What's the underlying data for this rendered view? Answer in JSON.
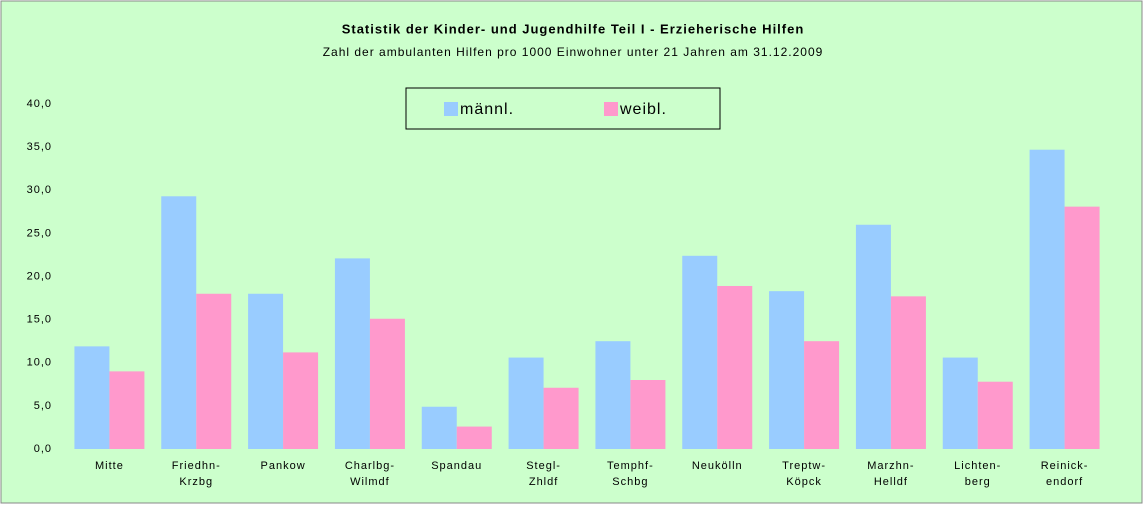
{
  "chart_data": {
    "type": "bar",
    "title": "Statistik der Kinder- und Jugendhilfe Teil I - Erzieherische Hilfen",
    "subtitle": "Zahl der ambulanten Hilfen pro 1000 Einwohner unter 21 Jahren am 31.12.2009",
    "categories": [
      "Mitte",
      "Friedhn-\nKrzbg",
      "Pankow",
      "Charlbg-\nWilmdf",
      "Spandau",
      "Stegl-\nZhldf",
      "Temphf-\nSchbg",
      "Neukölln",
      "Treptw-\nKöpck",
      "Marzhn-\nHelldf",
      "Lichten-\nberg",
      "Reinick-\nendorf"
    ],
    "series": [
      {
        "name": "männl.",
        "color": "#99ccff",
        "values": [
          11.9,
          29.3,
          18.0,
          22.1,
          4.9,
          10.6,
          12.5,
          22.4,
          18.3,
          26.0,
          10.6,
          34.7
        ]
      },
      {
        "name": "weibl.",
        "color": "#ff99cc",
        "values": [
          9.0,
          18.0,
          11.2,
          15.1,
          2.6,
          7.1,
          8.0,
          18.9,
          12.5,
          17.7,
          7.8,
          28.1
        ]
      }
    ],
    "ylim": [
      0,
      40
    ],
    "yticks": [
      {
        "value": 0,
        "label": "0,0"
      },
      {
        "value": 5,
        "label": "5,0"
      },
      {
        "value": 10,
        "label": "10,0"
      },
      {
        "value": 15,
        "label": "15,0"
      },
      {
        "value": 20,
        "label": "20,0"
      },
      {
        "value": 25,
        "label": "25,0"
      },
      {
        "value": 30,
        "label": "30,0"
      },
      {
        "value": 35,
        "label": "35,0"
      },
      {
        "value": 40,
        "label": "40,0"
      }
    ],
    "legend": "top"
  }
}
